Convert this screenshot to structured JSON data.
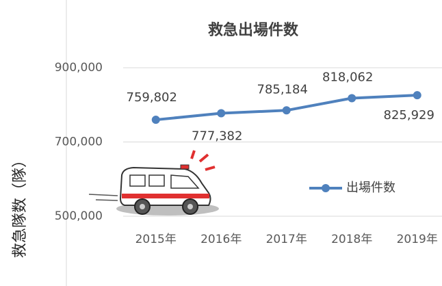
{
  "chart_data": {
    "type": "line",
    "title": "救急出場件数",
    "y_label": "救急隊数（隊）",
    "categories": [
      "2015年",
      "2016年",
      "2017年",
      "2018年",
      "2019年"
    ],
    "series": [
      {
        "name": "出場件数",
        "color": "#4f81bd",
        "values": [
          759802,
          777382,
          785184,
          818062,
          825929
        ],
        "value_labels": [
          "759,802",
          "777,382",
          "785,184",
          "818,062",
          "825,929"
        ]
      }
    ],
    "ylim": [
      500000,
      900000
    ],
    "yticks": [
      {
        "value": 500000,
        "label": "500,000"
      },
      {
        "value": 700000,
        "label": "700,000"
      },
      {
        "value": 900000,
        "label": "900,000"
      }
    ],
    "grid": true,
    "legend": "right"
  }
}
